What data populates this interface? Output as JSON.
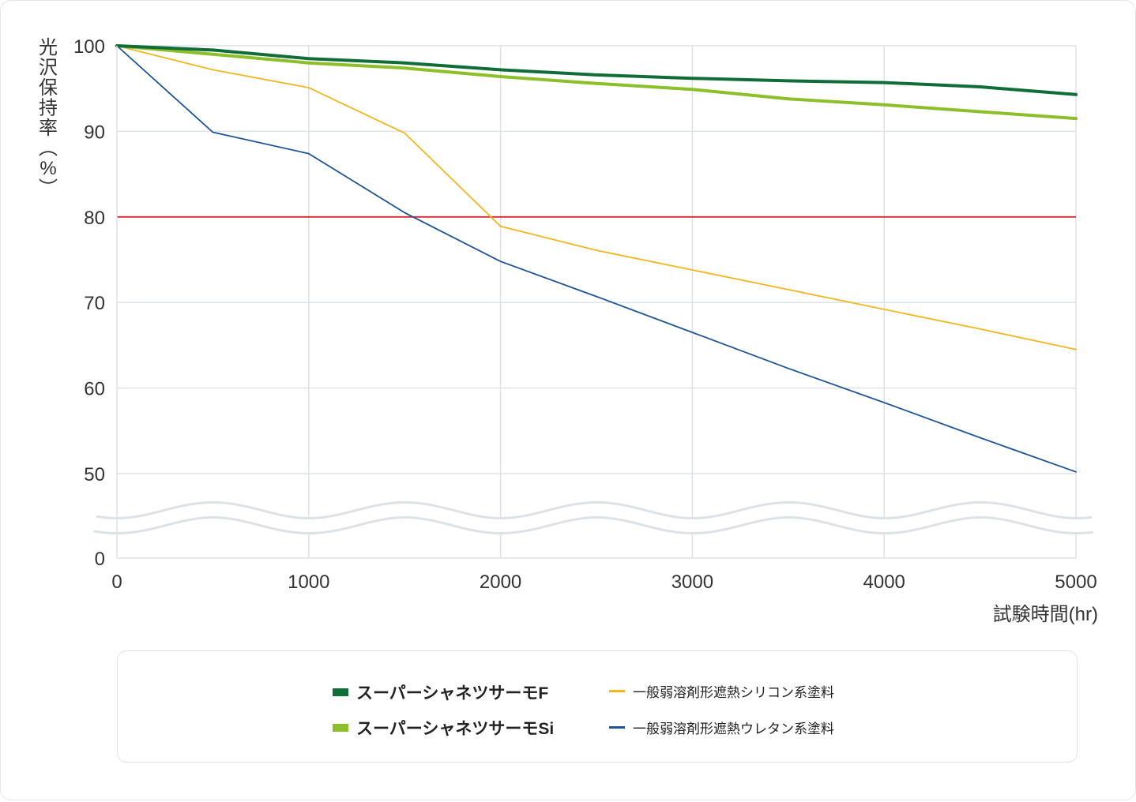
{
  "chart_data": {
    "type": "line",
    "ylabel": "光沢保持率(%)",
    "xlabel": "試験時間(hr)",
    "x": [
      0,
      500,
      1000,
      1500,
      2000,
      2500,
      3000,
      3500,
      4000,
      4500,
      5000
    ],
    "x_ticks": [
      "0",
      "1000",
      "2000",
      "3000",
      "4000",
      "5000"
    ],
    "y_ticks": [
      "0",
      "50",
      "60",
      "70",
      "80",
      "90",
      "100"
    ],
    "ylim": [
      50,
      100
    ],
    "y_axis_break": "between 0 and 50",
    "grid": true,
    "reference_line": {
      "y": 80,
      "color": "#e0262d"
    },
    "legend_position": "bottom",
    "series": [
      {
        "name": "スーパーシャネツサーモF",
        "color": "#106d38",
        "style": "bold",
        "values": [
          100,
          99.5,
          98.5,
          98,
          97.2,
          96.6,
          96.2,
          95.9,
          95.7,
          95.2,
          94.3
        ]
      },
      {
        "name": "スーパーシャネツサーモSi",
        "color": "#8cbf2a",
        "style": "bold",
        "values": [
          100,
          99,
          98,
          97.4,
          96.4,
          95.6,
          94.9,
          93.8,
          93.1,
          92.3,
          91.5
        ]
      },
      {
        "name": "一般弱溶剤形遮熱シリコン系塗料",
        "color": "#f2b71e",
        "style": "thin",
        "values": [
          100,
          97.2,
          95.1,
          89.8,
          78.9,
          76.1,
          73.8,
          71.5,
          69.2,
          66.9,
          64.5
        ]
      },
      {
        "name": "一般弱溶剤形遮熱ウレタン系塗料",
        "color": "#1d5597",
        "style": "thin",
        "values": [
          100,
          89.9,
          87.4,
          80.5,
          74.8,
          70.7,
          66.5,
          62.3,
          58.3,
          54.2,
          50.2
        ]
      }
    ]
  }
}
